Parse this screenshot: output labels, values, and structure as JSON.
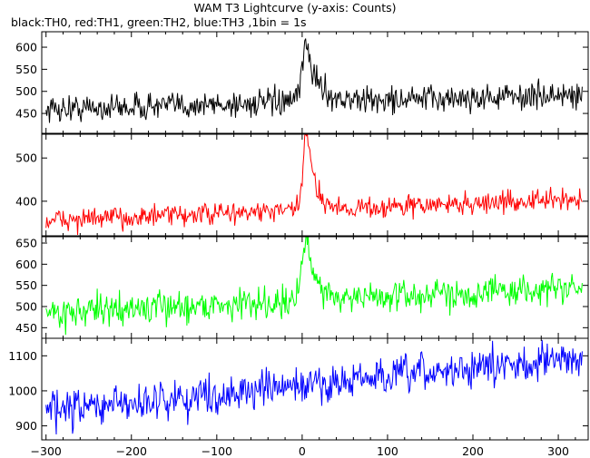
{
  "title": "WAM T3 Lightcurve (y-axis: Counts)",
  "subtitle": "black:TH0, red:TH1, green:TH2, blue:TH3 ,1bin = 1s",
  "chart_data": {
    "type": "line",
    "xlim": [
      -305,
      335
    ],
    "x_ticks": [
      -300,
      -200,
      -100,
      0,
      100,
      200,
      300
    ],
    "x_step": 1,
    "grid": false,
    "panels": [
      {
        "name": "TH0",
        "color": "#000000",
        "ylim": [
          405,
          635
        ],
        "yticks": [
          450,
          500,
          550,
          600
        ],
        "baseline_start": 460,
        "baseline_end": 492,
        "noise": 22,
        "flare": {
          "peak_x": 5,
          "amplitude": 130,
          "rise": 5,
          "decay": 13
        }
      },
      {
        "name": "TH1",
        "color": "#ff0000",
        "ylim": [
          320,
          555
        ],
        "yticks": [
          400,
          500
        ],
        "baseline_start": 355,
        "baseline_end": 405,
        "noise": 18,
        "flare": {
          "peak_x": 5,
          "amplitude": 180,
          "rise": 4,
          "decay": 10
        }
      },
      {
        "name": "TH2",
        "color": "#00ff00",
        "ylim": [
          425,
          665
        ],
        "yticks": [
          450,
          500,
          550,
          600,
          650
        ],
        "baseline_start": 485,
        "baseline_end": 545,
        "noise": 26,
        "flare": {
          "peak_x": 5,
          "amplitude": 140,
          "rise": 5,
          "decay": 12
        }
      },
      {
        "name": "TH3",
        "color": "#0000ff",
        "ylim": [
          860,
          1150
        ],
        "yticks": [
          900,
          1000,
          1100
        ],
        "baseline_start": 940,
        "baseline_end": 1095,
        "noise": 38,
        "flare": {
          "peak_x": 5,
          "amplitude": 0,
          "rise": 5,
          "decay": 10
        }
      }
    ]
  }
}
